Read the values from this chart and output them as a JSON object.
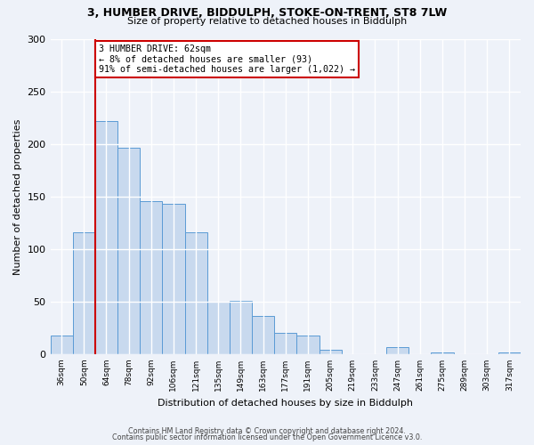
{
  "title1": "3, HUMBER DRIVE, BIDDULPH, STOKE-ON-TRENT, ST8 7LW",
  "title2": "Size of property relative to detached houses in Biddulph",
  "xlabel": "Distribution of detached houses by size in Biddulph",
  "ylabel": "Number of detached properties",
  "bar_labels": [
    "36sqm",
    "50sqm",
    "64sqm",
    "78sqm",
    "92sqm",
    "106sqm",
    "121sqm",
    "135sqm",
    "149sqm",
    "163sqm",
    "177sqm",
    "191sqm",
    "205sqm",
    "219sqm",
    "233sqm",
    "247sqm",
    "261sqm",
    "275sqm",
    "289sqm",
    "303sqm",
    "317sqm"
  ],
  "bar_values": [
    18,
    116,
    222,
    197,
    146,
    143,
    116,
    50,
    51,
    36,
    20,
    18,
    4,
    0,
    0,
    7,
    0,
    2,
    0,
    0,
    2
  ],
  "bar_color": "#c8d9ee",
  "bar_edge_color": "#5b9bd5",
  "vline_color": "#cc0000",
  "annotation_title": "3 HUMBER DRIVE: 62sqm",
  "annotation_line1": "← 8% of detached houses are smaller (93)",
  "annotation_line2": "91% of semi-detached houses are larger (1,022) →",
  "annotation_box_color": "#cc0000",
  "ylim": [
    0,
    300
  ],
  "yticks": [
    0,
    50,
    100,
    150,
    200,
    250,
    300
  ],
  "footer1": "Contains HM Land Registry data © Crown copyright and database right 2024.",
  "footer2": "Contains public sector information licensed under the Open Government Licence v3.0.",
  "background_color": "#eef2f9"
}
